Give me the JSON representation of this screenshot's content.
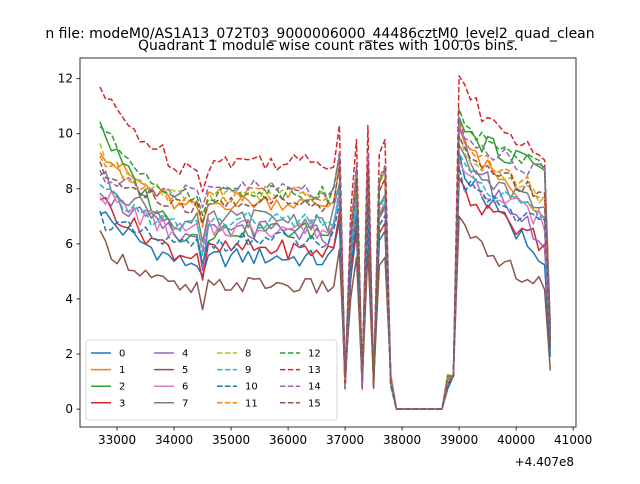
{
  "figure": {
    "suptitle": "n file: modeM0/AS1A13_072T03_9000006000_44486cztM0_level2_quad_clean",
    "offset_text": "+4.407e8"
  },
  "chart_data": {
    "type": "line",
    "title": "Quadrant 1 module wise count rates with 100.0s bins.",
    "xlabel": "",
    "ylabel": "",
    "xlim": [
      32350,
      41050
    ],
    "ylim": [
      -0.65,
      12.75
    ],
    "x_ticks": [
      33000,
      34000,
      35000,
      36000,
      37000,
      38000,
      39000,
      40000,
      41000
    ],
    "x_tick_labels": [
      "33000",
      "34000",
      "35000",
      "36000",
      "37000",
      "38000",
      "39000",
      "40000",
      "41000"
    ],
    "y_ticks": [
      0,
      2,
      4,
      6,
      8,
      10,
      12
    ],
    "y_tick_labels": [
      "0",
      "2",
      "4",
      "6",
      "8",
      "10",
      "12"
    ],
    "grid": false,
    "legend": {
      "placement": "lower-left",
      "columns": 4
    },
    "x": [
      32700,
      32800,
      32900,
      33000,
      33100,
      33200,
      33300,
      33400,
      33500,
      33600,
      33700,
      33800,
      33900,
      34000,
      34100,
      34200,
      34300,
      34400,
      34500,
      34600,
      34700,
      34800,
      34900,
      35000,
      35100,
      35200,
      35300,
      35400,
      35500,
      35600,
      35700,
      35800,
      35900,
      36000,
      36100,
      36200,
      36300,
      36400,
      36500,
      36600,
      36700,
      36800,
      36900,
      37000,
      37100,
      37200,
      37300,
      37400,
      37500,
      37600,
      37700,
      37800,
      37900,
      38000,
      38100,
      38200,
      38300,
      38400,
      38500,
      38600,
      38700,
      38800,
      38900,
      39000,
      39100,
      39200,
      39300,
      39400,
      39500,
      39600,
      39700,
      39800,
      39900,
      40000,
      40100,
      40200,
      40300,
      40400,
      40500,
      40600
    ],
    "gap_shape": [
      1,
      0.5,
      0.7,
      0.95,
      0.5,
      1.0,
      0.4,
      0.9,
      0.95,
      0.5,
      0.0,
      0.0,
      0.0,
      0.0,
      0.0,
      0.0,
      0.0,
      0.0,
      0.0,
      0.1,
      0.7,
      1.0
    ],
    "series": [
      {
        "name": "0",
        "color": "#1f77b4",
        "dash": "solid",
        "start": 7.3,
        "floor": 5.3,
        "peak": 9.3,
        "end": 5.5,
        "final": 1.9,
        "wiggle": 0.35
      },
      {
        "name": "1",
        "color": "#ff7f0e",
        "dash": "solid",
        "start": 9.6,
        "floor": 7.3,
        "peak": 10.3,
        "end": 7.2,
        "final": 2.6,
        "wiggle": 0.3
      },
      {
        "name": "2",
        "color": "#2ca02c",
        "dash": "solid",
        "start": 10.6,
        "floor": 6.3,
        "peak": 10.6,
        "end": 8.8,
        "final": 2.9,
        "wiggle": 0.35
      },
      {
        "name": "3",
        "color": "#d62728",
        "dash": "solid",
        "start": 7.8,
        "floor": 5.6,
        "peak": 8.4,
        "end": 6.0,
        "final": 2.3,
        "wiggle": 0.35
      },
      {
        "name": "4",
        "color": "#9467bd",
        "dash": "solid",
        "start": 8.2,
        "floor": 6.2,
        "peak": 10.2,
        "end": 6.0,
        "final": 2.5,
        "wiggle": 0.4
      },
      {
        "name": "5",
        "color": "#8c564b",
        "dash": "solid",
        "start": 6.2,
        "floor": 4.3,
        "peak": 7.0,
        "end": 4.4,
        "final": 1.4,
        "wiggle": 0.3
      },
      {
        "name": "6",
        "color": "#e377c2",
        "dash": "solid",
        "start": 8.0,
        "floor": 6.4,
        "peak": 9.0,
        "end": 6.8,
        "final": 2.5,
        "wiggle": 0.4
      },
      {
        "name": "7",
        "color": "#7f7f7f",
        "dash": "solid",
        "start": 8.6,
        "floor": 6.7,
        "peak": 9.6,
        "end": 7.3,
        "final": 2.6,
        "wiggle": 0.35
      },
      {
        "name": "8",
        "color": "#bcbd22",
        "dash": "dashed",
        "start": 9.4,
        "floor": 7.6,
        "peak": 10.0,
        "end": 7.6,
        "final": 2.6,
        "wiggle": 0.3
      },
      {
        "name": "9",
        "color": "#17becf",
        "dash": "dashed",
        "start": 8.0,
        "floor": 6.6,
        "peak": 9.3,
        "end": 7.0,
        "final": 2.4,
        "wiggle": 0.35
      },
      {
        "name": "10",
        "color": "#1f77b4",
        "dash": "dashed",
        "start": 7.0,
        "floor": 5.9,
        "peak": 8.8,
        "end": 6.6,
        "final": 2.1,
        "wiggle": 0.35
      },
      {
        "name": "11",
        "color": "#ff7f0e",
        "dash": "dashed",
        "start": 9.2,
        "floor": 7.6,
        "peak": 10.4,
        "end": 7.8,
        "final": 2.7,
        "wiggle": 0.3
      },
      {
        "name": "12",
        "color": "#2ca02c",
        "dash": "dashed",
        "start": 10.4,
        "floor": 7.7,
        "peak": 10.9,
        "end": 8.8,
        "final": 2.8,
        "wiggle": 0.3
      },
      {
        "name": "13",
        "color": "#d62728",
        "dash": "dashed",
        "start": 11.7,
        "floor": 8.8,
        "peak": 12.1,
        "end": 9.0,
        "final": 3.0,
        "wiggle": 0.35
      },
      {
        "name": "14",
        "color": "#9467bd",
        "dash": "dashed",
        "start": 8.6,
        "floor": 7.8,
        "peak": 10.6,
        "end": 8.5,
        "final": 2.7,
        "wiggle": 0.35
      },
      {
        "name": "15",
        "color": "#8c564b",
        "dash": "dashed",
        "start": 8.7,
        "floor": 7.3,
        "peak": 9.9,
        "end": 7.8,
        "final": 2.5,
        "wiggle": 0.3
      }
    ]
  }
}
